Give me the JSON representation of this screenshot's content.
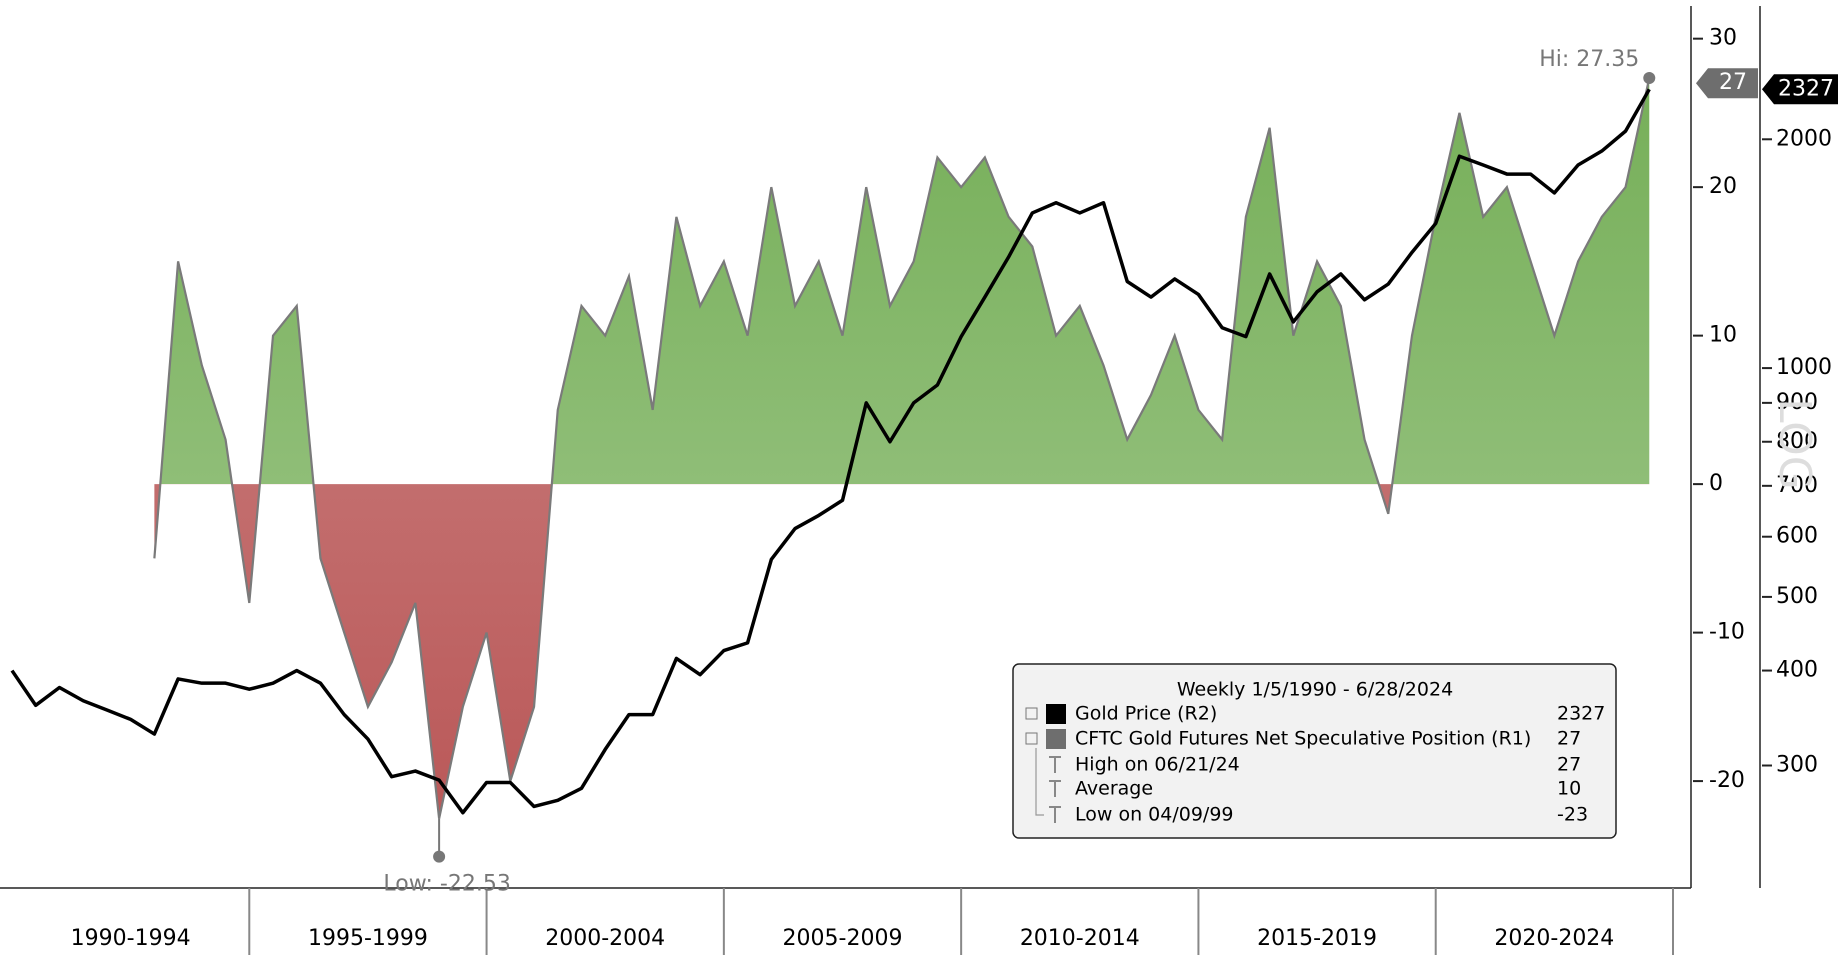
{
  "chart_data": {
    "type": "area",
    "x": [
      1990,
      1990.5,
      1991,
      1991.5,
      1992,
      1992.5,
      1993,
      1993.5,
      1994,
      1994.5,
      1995,
      1995.5,
      1996,
      1996.5,
      1997,
      1997.5,
      1998,
      1998.5,
      1999,
      1999.5,
      2000,
      2000.5,
      2001,
      2001.5,
      2002,
      2002.5,
      2003,
      2003.5,
      2004,
      2004.5,
      2005,
      2005.5,
      2006,
      2006.5,
      2007,
      2007.5,
      2008,
      2008.5,
      2009,
      2009.5,
      2010,
      2010.5,
      2011,
      2011.5,
      2012,
      2012.5,
      2013,
      2013.5,
      2014,
      2014.5,
      2015,
      2015.5,
      2016,
      2016.5,
      2017,
      2017.5,
      2018,
      2018.5,
      2019,
      2019.5,
      2020,
      2020.5,
      2021,
      2021.5,
      2022,
      2022.5,
      2023,
      2023.5,
      2024,
      2024.5
    ],
    "xlim": [
      1990,
      2025
    ],
    "categories": [
      "1990-1994",
      "1995-1999",
      "2000-2004",
      "2005-2009",
      "2010-2014",
      "2015-2019",
      "2020-2024"
    ],
    "series": [
      {
        "name": "Gold Price (R2)",
        "type": "line",
        "axis": "y2",
        "color": "#000000",
        "legend_value": 2327,
        "values": [
          400,
          360,
          380,
          365,
          355,
          345,
          330,
          390,
          385,
          385,
          378,
          385,
          400,
          385,
          350,
          325,
          290,
          295,
          287,
          260,
          285,
          285,
          265,
          270,
          280,
          315,
          350,
          350,
          415,
          395,
          425,
          435,
          560,
          615,
          640,
          670,
          900,
          800,
          900,
          950,
          1100,
          1240,
          1400,
          1600,
          1650,
          1600,
          1650,
          1300,
          1240,
          1310,
          1250,
          1130,
          1100,
          1330,
          1150,
          1260,
          1330,
          1230,
          1290,
          1420,
          1550,
          1900,
          1850,
          1800,
          1800,
          1700,
          1850,
          1930,
          2050,
          2327
        ]
      },
      {
        "name": "CFTC Gold Futures Net Speculative Position (R1)",
        "type": "area",
        "axis": "y",
        "color": "#7a7a7a",
        "fill_positive": "#6aa84a",
        "fill_negative": "#b85454",
        "legend_value": 27,
        "values": [
          null,
          null,
          null,
          null,
          null,
          null,
          -5,
          15,
          8,
          3,
          -8,
          10,
          12,
          -5,
          -10,
          -15,
          -12,
          -8,
          -22.53,
          -15,
          -10,
          -20,
          -15,
          5,
          12,
          10,
          14,
          5,
          18,
          12,
          15,
          10,
          20,
          12,
          15,
          10,
          20,
          12,
          15,
          22,
          20,
          22,
          18,
          16,
          10,
          12,
          8,
          3,
          6,
          10,
          5,
          3,
          18,
          24,
          10,
          15,
          12,
          3,
          -2,
          10,
          18,
          25,
          18,
          20,
          15,
          10,
          15,
          18,
          20,
          27.35
        ]
      }
    ],
    "ylim": [
      -27.2,
      32.2
    ],
    "yticks": [
      -20,
      -10,
      0,
      10,
      20,
      30
    ],
    "y2lim": [
      207,
      2995
    ],
    "y2ticks": [
      300,
      400,
      500,
      600,
      700,
      800,
      900,
      1000,
      2000
    ],
    "y2scale": "log",
    "annotations": {
      "high": "Hi: 27.35",
      "low": "Low: -22.53",
      "scale": "LOG"
    },
    "legend": {
      "title": "Weekly 1/5/1990 - 6/28/2024",
      "stats": [
        {
          "label": "High on 06/21/24",
          "value": 27
        },
        {
          "label": "Average",
          "value": 10
        },
        {
          "label": "Low on 04/09/99",
          "value": -23
        }
      ]
    }
  }
}
